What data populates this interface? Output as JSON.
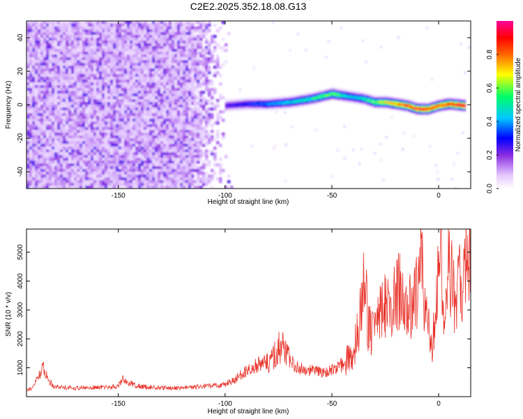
{
  "title": "C2E2.2025.352.18.08.G13",
  "chart_data": [
    {
      "type": "heatmap",
      "xlabel": "Height of straight line (km)",
      "ylabel": "Frequency (Hz)",
      "xlim": [
        -193,
        15
      ],
      "ylim": [
        -50,
        50
      ],
      "xticks": [
        -150,
        -100,
        -50,
        0
      ],
      "yticks": [
        -40,
        -20,
        0,
        20,
        40
      ],
      "colorbar": {
        "label": "Normalized spectral amplitude",
        "range": [
          0,
          1
        ],
        "ticks": [
          0.0,
          0.2,
          0.4,
          0.6,
          0.8
        ],
        "colors": [
          "#ffffff",
          "#e4c8ff",
          "#8a2be2",
          "#0000ff",
          "#00c8ff",
          "#00ff66",
          "#ffff00",
          "#ff6600",
          "#ff0000",
          "#ff0099"
        ]
      },
      "noise_region": {
        "x": [
          -193,
          -97
        ],
        "y": [
          -50,
          50
        ],
        "level": 0.12
      },
      "ridge": {
        "x": [
          -100,
          -90,
          -80,
          -70,
          -60,
          -50,
          -45,
          -40,
          -35,
          -30,
          -25,
          -20,
          -15,
          -10,
          -5,
          0,
          5,
          12
        ],
        "y": [
          0,
          1,
          1,
          2,
          4,
          7,
          6,
          5,
          4,
          2,
          2,
          1,
          0,
          -2,
          -2,
          0,
          1,
          0
        ],
        "amplitude": [
          0.25,
          0.3,
          0.38,
          0.45,
          0.52,
          0.6,
          0.5,
          0.45,
          0.5,
          0.6,
          0.7,
          0.8,
          0.85,
          0.9,
          0.88,
          0.85,
          0.9,
          0.95
        ]
      }
    },
    {
      "type": "line",
      "xlabel": "Height of straight line (km)",
      "ylabel": "SNR (10 * v/v)",
      "xlim": [
        -193,
        15
      ],
      "ylim": [
        0,
        5800
      ],
      "xticks": [
        -150,
        -100,
        -50,
        0
      ],
      "yticks": [
        1000,
        2000,
        3000,
        4000,
        5000
      ],
      "series": [
        {
          "color": "#e8332a",
          "x": [
            -193,
            -190,
            -188,
            -186,
            -185,
            -183,
            -180,
            -170,
            -160,
            -150,
            -148,
            -146,
            -140,
            -130,
            -120,
            -110,
            -100,
            -95,
            -90,
            -85,
            -80,
            -76,
            -74,
            -70,
            -65,
            -60,
            -55,
            -50,
            -45,
            -40,
            -37,
            -35,
            -33,
            -30,
            -28,
            -25,
            -22,
            -20,
            -18,
            -15,
            -13,
            -10,
            -8,
            -5,
            -3,
            0,
            3,
            5,
            8,
            10,
            12,
            15
          ],
          "y": [
            250,
            300,
            650,
            900,
            1000,
            600,
            350,
            300,
            320,
            350,
            650,
            500,
            350,
            300,
            300,
            350,
            420,
            600,
            900,
            1100,
            1200,
            1500,
            1900,
            1200,
            1000,
            900,
            850,
            900,
            1100,
            1500,
            2600,
            4300,
            2500,
            2200,
            2800,
            3300,
            2800,
            3500,
            3700,
            3200,
            3000,
            3800,
            4500,
            2500,
            1500,
            5000,
            3200,
            4600,
            3000,
            4200,
            4400,
            4600
          ]
        }
      ]
    }
  ]
}
